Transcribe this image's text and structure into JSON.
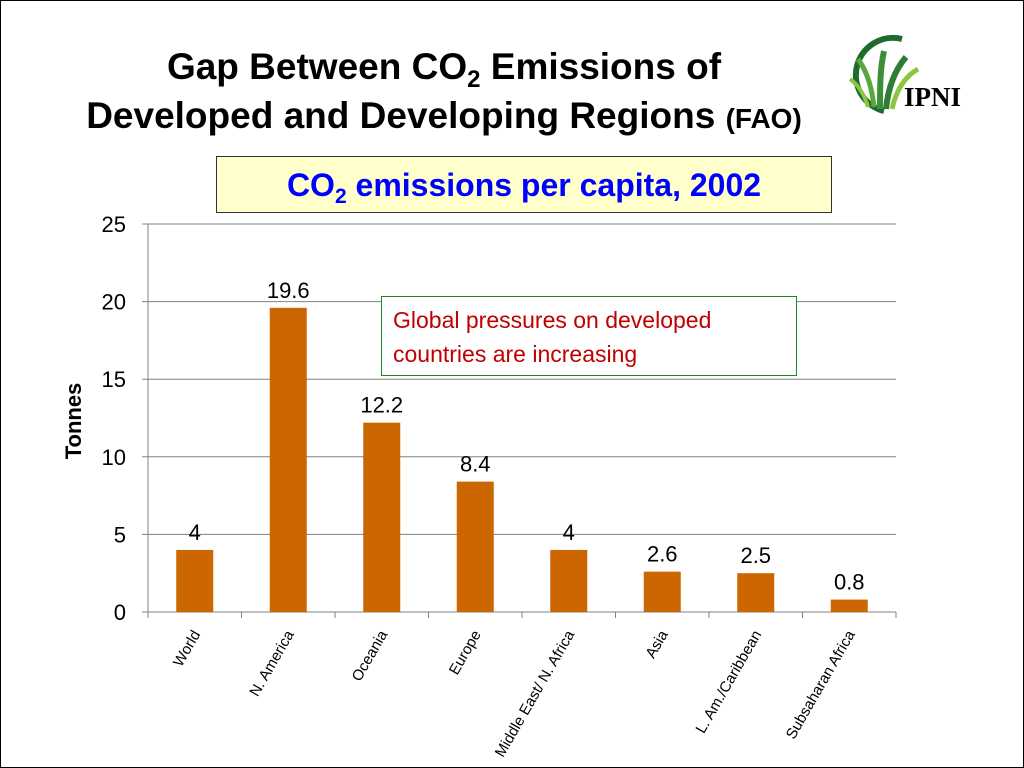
{
  "slide": {
    "title_line1_pre": "Gap Between CO",
    "title_line1_sub": "2",
    "title_line1_post": " Emissions of",
    "title_line2": "Developed and Developing Regions",
    "title_line2_source": "(FAO)",
    "logo_text": "IPNI",
    "logo_icon": "ipni-grass-logo-icon"
  },
  "annotation": {
    "line1": "Global pressures on developed",
    "line2": "countries are increasing"
  },
  "chart_data": {
    "type": "bar",
    "title_pre": "CO",
    "title_sub": "2",
    "title_post": " emissions per capita, 2002",
    "xlabel": "",
    "ylabel": "Tonnes",
    "ylim": [
      0,
      25
    ],
    "yticks": [
      0,
      5,
      10,
      15,
      20,
      25
    ],
    "grid": true,
    "categories": [
      "World",
      "N. America",
      "Oceania",
      "Europe",
      "Middle East/ N. Africa",
      "Asia",
      "L. Am./Caribbean",
      "Subsaharan Africa"
    ],
    "values": [
      4,
      19.6,
      12.2,
      8.4,
      4,
      2.6,
      2.5,
      0.8
    ],
    "data_labels": [
      "4",
      "19.6",
      "12.2",
      "8.4",
      "4",
      "2.6",
      "2.5",
      "0.8"
    ],
    "colors": {
      "bar": "#cc6600",
      "grid": "#808080",
      "axis": "#808080"
    }
  }
}
